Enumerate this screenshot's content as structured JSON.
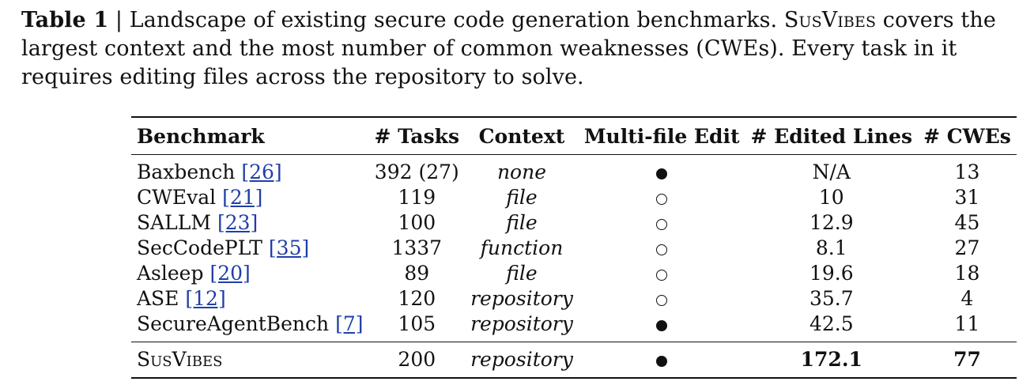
{
  "caption": {
    "label": "Table 1",
    "separator": " | ",
    "text_before": "Landscape of existing secure code generation benchmarks. ",
    "name": "SusVibes",
    "text_after": " covers the largest context and the most number of common weaknesses (CWEs). Every task in it requires editing files across the repository to solve."
  },
  "table": {
    "headers": [
      "Benchmark",
      "# Tasks",
      "Context",
      "Multi-file Edit",
      "# Edited Lines",
      "# CWEs"
    ],
    "rows": [
      {
        "name": "Baxbench",
        "ref": "[26]",
        "tasks": "392 (27)",
        "context": "none",
        "multi_file": "filled-circle",
        "edited_lines": "N/A",
        "cwes": "13"
      },
      {
        "name": "CWEval",
        "ref": "[21]",
        "tasks": "119",
        "context": "file",
        "multi_file": "empty-circle",
        "edited_lines": "10",
        "cwes": "31"
      },
      {
        "name": "SALLM",
        "ref": "[23]",
        "tasks": "100",
        "context": "file",
        "multi_file": "empty-circle",
        "edited_lines": "12.9",
        "cwes": "45"
      },
      {
        "name": "SecCodePLT",
        "ref": "[35]",
        "tasks": "1337",
        "context": "function",
        "multi_file": "empty-circle",
        "edited_lines": "8.1",
        "cwes": "27"
      },
      {
        "name": "Asleep",
        "ref": "[20]",
        "tasks": "89",
        "context": "file",
        "multi_file": "empty-circle",
        "edited_lines": "19.6",
        "cwes": "18"
      },
      {
        "name": "ASE",
        "ref": "[12]",
        "tasks": "120",
        "context": "repository",
        "multi_file": "empty-circle",
        "edited_lines": "35.7",
        "cwes": "4"
      },
      {
        "name": "SecureAgentBench",
        "ref": "[7]",
        "tasks": "105",
        "context": "repository",
        "multi_file": "filled-circle",
        "edited_lines": "42.5",
        "cwes": "11"
      }
    ],
    "ours": {
      "name": "SusVibes",
      "tasks": "200",
      "context": "repository",
      "multi_file": "filled-circle",
      "edited_lines": "172.1",
      "cwes": "77"
    }
  }
}
